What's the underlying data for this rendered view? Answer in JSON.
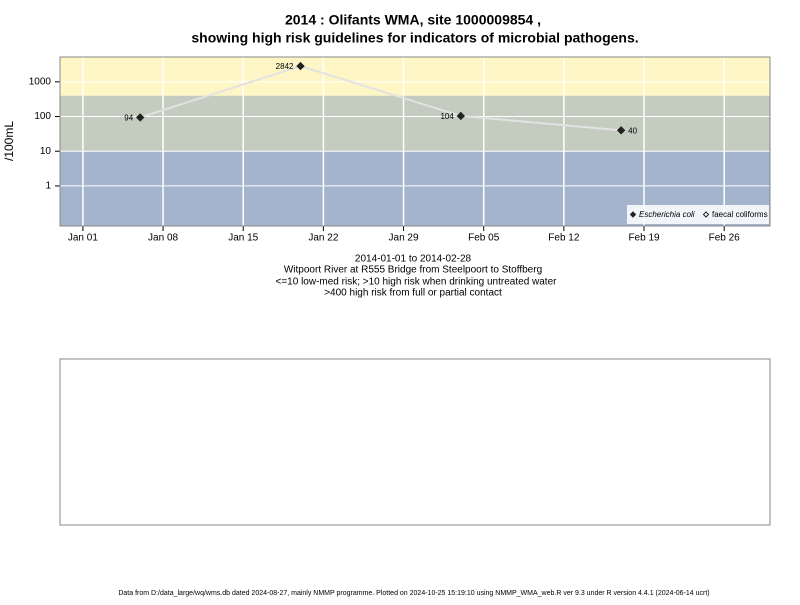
{
  "chart_data": {
    "type": "line",
    "title": "2014 : Olifants WMA, site 1000009854 ,",
    "subtitle": "showing high risk guidelines for indicators of microbial pathogens.",
    "y_label": "/100mL",
    "caption": [
      "2014-01-01 to 2014-02-28",
      "Witpoort River at R555 Bridge from Steelpoort to Stoffberg",
      "<=10 low-med risk; >10 high risk when drinking untreated water",
      ">400 high risk from full or partial contact"
    ],
    "footer": "Data from D:/data_large/wq/wms.db dated 2024-08-27, mainly NMMP programme. Plotted on 2024-10-25 15:19:10 using NMMP_WMA_web.R ver 9.3 under R version 4.4.1 (2024-06-14 ucrt)",
    "x": [
      "2014-01-06",
      "2014-01-20",
      "2014-02-03",
      "2014-02-17"
    ],
    "series": [
      {
        "name": "Escherichia coli",
        "color": "#222222",
        "line_color": "#e2e2e2",
        "values": [
          94,
          2842,
          104,
          40
        ]
      },
      {
        "name": "faecal coliforms",
        "color": "#222222",
        "values": [
          null,
          null,
          null,
          null
        ]
      }
    ],
    "xlim": [
      "2013-12-30",
      "2014-03-02"
    ],
    "xticks": [
      {
        "value": "2014-01-01",
        "label": "Jan 01"
      },
      {
        "value": "2014-01-08",
        "label": "Jan 08"
      },
      {
        "value": "2014-01-15",
        "label": "Jan 15"
      },
      {
        "value": "2014-01-22",
        "label": "Jan 22"
      },
      {
        "value": "2014-01-29",
        "label": "Jan 29"
      },
      {
        "value": "2014-02-05",
        "label": "Feb 05"
      },
      {
        "value": "2014-02-12",
        "label": "Feb 12"
      },
      {
        "value": "2014-02-19",
        "label": "Feb 19"
      },
      {
        "value": "2014-02-26",
        "label": "Feb 26"
      }
    ],
    "ylim": [
      0.07,
      5200
    ],
    "yticks": [
      1,
      10,
      100,
      1000
    ],
    "log_y": true,
    "grid": true,
    "thresholds": [
      10,
      400
    ],
    "band_colors": [
      "#a3b4cc",
      "#c4ccc0",
      "#fff6c6"
    ],
    "legend": "bottom-right"
  }
}
